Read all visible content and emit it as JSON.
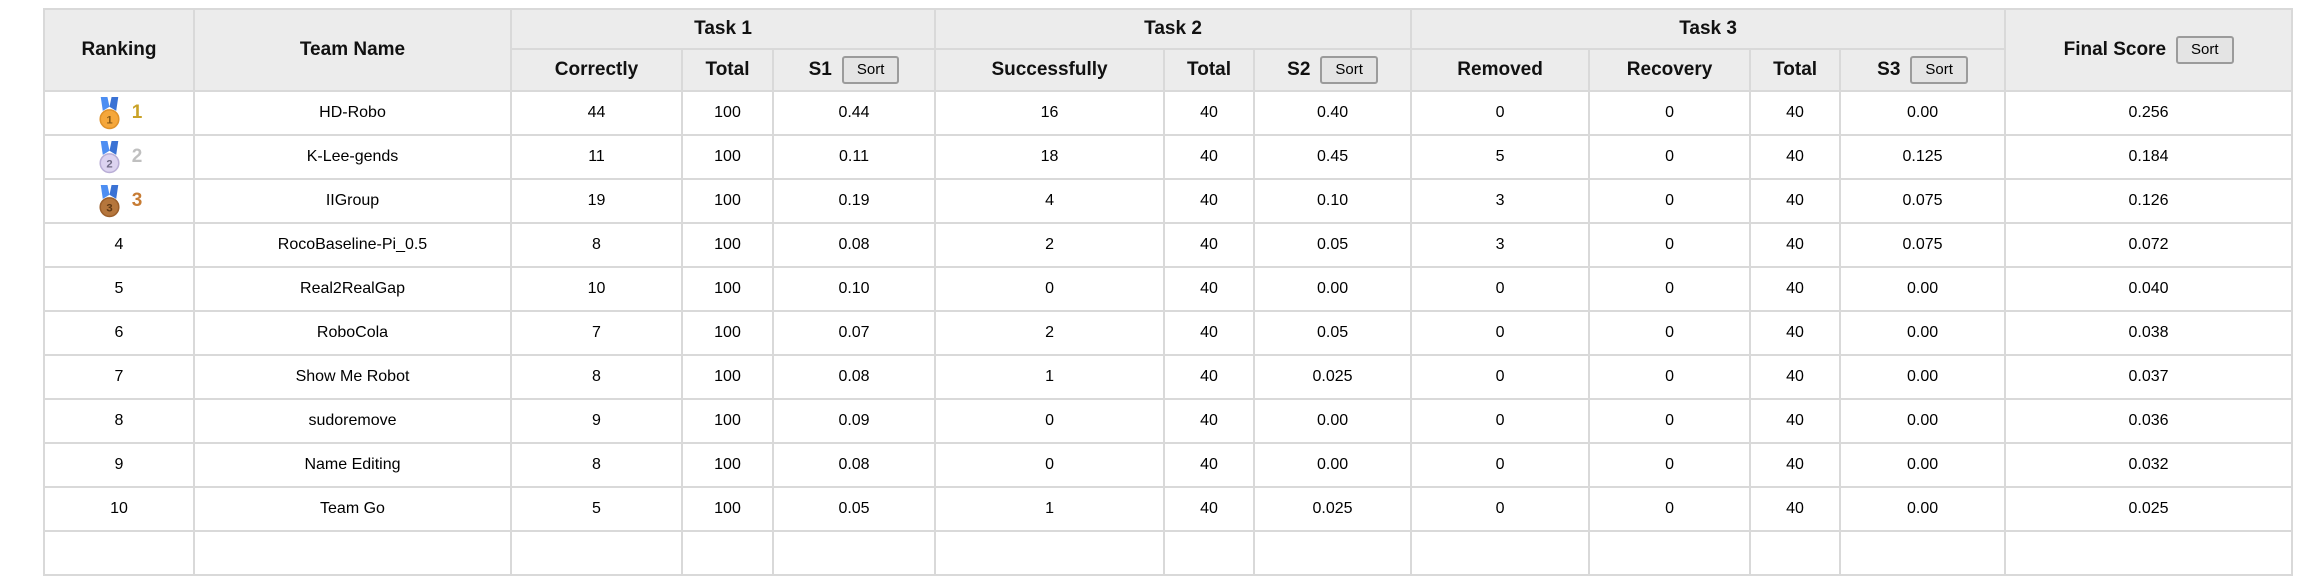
{
  "header": {
    "ranking": "Ranking",
    "team_name": "Team Name",
    "task1": "Task 1",
    "task2": "Task 2",
    "task3": "Task 3",
    "final_score": "Final Score",
    "sort_label": "Sort",
    "sub": {
      "correctly": "Correctly",
      "total1": "Total",
      "s1": "S1",
      "successfully": "Successfully",
      "total2": "Total",
      "s2": "S2",
      "removed": "Removed",
      "recovery": "Recovery",
      "total3": "Total",
      "s3": "S3"
    }
  },
  "rows": [
    {
      "rank": "1",
      "medal": "gold",
      "team": "HD-Robo",
      "correctly": "44",
      "total1": "100",
      "s1": "0.44",
      "successfully": "16",
      "total2": "40",
      "s2": "0.40",
      "removed": "0",
      "recovery": "0",
      "total3": "40",
      "s3": "0.00",
      "final": "0.256"
    },
    {
      "rank": "2",
      "medal": "silver",
      "team": "K-Lee-gends",
      "correctly": "11",
      "total1": "100",
      "s1": "0.11",
      "successfully": "18",
      "total2": "40",
      "s2": "0.45",
      "removed": "5",
      "recovery": "0",
      "total3": "40",
      "s3": "0.125",
      "final": "0.184"
    },
    {
      "rank": "3",
      "medal": "bronze",
      "team": "IIGroup",
      "correctly": "19",
      "total1": "100",
      "s1": "0.19",
      "successfully": "4",
      "total2": "40",
      "s2": "0.10",
      "removed": "3",
      "recovery": "0",
      "total3": "40",
      "s3": "0.075",
      "final": "0.126"
    },
    {
      "rank": "4",
      "medal": null,
      "team": "RocoBaseline-Pi_0.5",
      "correctly": "8",
      "total1": "100",
      "s1": "0.08",
      "successfully": "2",
      "total2": "40",
      "s2": "0.05",
      "removed": "3",
      "recovery": "0",
      "total3": "40",
      "s3": "0.075",
      "final": "0.072"
    },
    {
      "rank": "5",
      "medal": null,
      "team": "Real2RealGap",
      "correctly": "10",
      "total1": "100",
      "s1": "0.10",
      "successfully": "0",
      "total2": "40",
      "s2": "0.00",
      "removed": "0",
      "recovery": "0",
      "total3": "40",
      "s3": "0.00",
      "final": "0.040"
    },
    {
      "rank": "6",
      "medal": null,
      "team": "RoboCola",
      "correctly": "7",
      "total1": "100",
      "s1": "0.07",
      "successfully": "2",
      "total2": "40",
      "s2": "0.05",
      "removed": "0",
      "recovery": "0",
      "total3": "40",
      "s3": "0.00",
      "final": "0.038"
    },
    {
      "rank": "7",
      "medal": null,
      "team": "Show Me Robot",
      "correctly": "8",
      "total1": "100",
      "s1": "0.08",
      "successfully": "1",
      "total2": "40",
      "s2": "0.025",
      "removed": "0",
      "recovery": "0",
      "total3": "40",
      "s3": "0.00",
      "final": "0.037"
    },
    {
      "rank": "8",
      "medal": null,
      "team": "sudoremove",
      "correctly": "9",
      "total1": "100",
      "s1": "0.09",
      "successfully": "0",
      "total2": "40",
      "s2": "0.00",
      "removed": "0",
      "recovery": "0",
      "total3": "40",
      "s3": "0.00",
      "final": "0.036"
    },
    {
      "rank": "9",
      "medal": null,
      "team": "Name Editing",
      "correctly": "8",
      "total1": "100",
      "s1": "0.08",
      "successfully": "0",
      "total2": "40",
      "s2": "0.00",
      "removed": "0",
      "recovery": "0",
      "total3": "40",
      "s3": "0.00",
      "final": "0.032"
    },
    {
      "rank": "10",
      "medal": null,
      "team": "Team Go",
      "correctly": "5",
      "total1": "100",
      "s1": "0.05",
      "successfully": "1",
      "total2": "40",
      "s2": "0.025",
      "removed": "0",
      "recovery": "0",
      "total3": "40",
      "s3": "0.00",
      "final": "0.025"
    }
  ],
  "rank_colors": {
    "1": "#c9a227",
    "2": "#c0c0c0",
    "3": "#c77c34"
  },
  "medal_colors": {
    "gold": {
      "ribbon": "#4d8ef2",
      "ribbon_dark": "#3a72d4",
      "circle": "#f5a73b",
      "ring": "#e0922a",
      "number": "#8a5a16"
    },
    "silver": {
      "ribbon": "#4d8ef2",
      "ribbon_dark": "#3a72d4",
      "circle": "#dcd3f0",
      "ring": "#b9aed6",
      "number": "#6f6a85"
    },
    "bronze": {
      "ribbon": "#4d8ef2",
      "ribbon_dark": "#3a72d4",
      "circle": "#b5763c",
      "ring": "#9c5f2a",
      "number": "#5f3813"
    }
  },
  "colors": {
    "header_bg": "#ececec",
    "grid_border": "#d9d9d9",
    "button_bg": "#e4e4e4",
    "button_border": "#9b9b9b"
  }
}
